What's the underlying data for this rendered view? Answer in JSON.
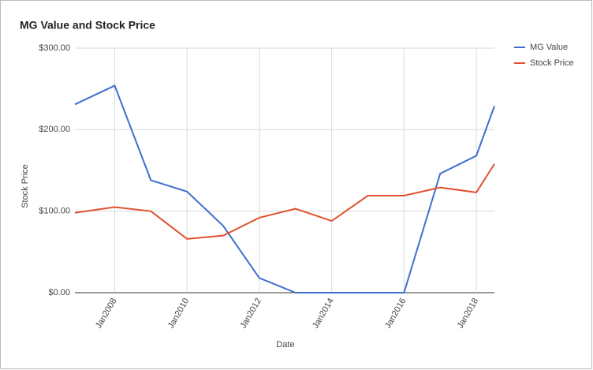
{
  "chart_data": {
    "type": "line",
    "title": "MG Value and Stock Price",
    "x_label": "Date",
    "y_label": "Stock Price",
    "x": [
      2006.9,
      2008,
      2009,
      2010,
      2011,
      2012,
      2013,
      2014,
      2015,
      2016,
      2017,
      2018,
      2018.5
    ],
    "series": [
      {
        "name": "MG Value",
        "color": "#3f6fcc",
        "values": [
          231,
          254,
          138,
          124,
          82,
          18,
          0,
          0,
          0,
          0,
          146,
          168,
          229
        ]
      },
      {
        "name": "Stock Price",
        "color": "#e0522f",
        "values": [
          98,
          105,
          100,
          66,
          70,
          92,
          103,
          88,
          119,
          119,
          129,
          123,
          158
        ]
      }
    ],
    "xlim": [
      2006.9,
      2018.5
    ],
    "xticks": [
      {
        "value": 2008,
        "label": "Jan2008"
      },
      {
        "value": 2010,
        "label": "Jan2010"
      },
      {
        "value": 2012,
        "label": "Jan2012"
      },
      {
        "value": 2014,
        "label": "Jan2014"
      },
      {
        "value": 2016,
        "label": "Jan2016"
      },
      {
        "value": 2018,
        "label": "Jan2018"
      }
    ],
    "ylim": [
      0,
      300
    ],
    "yticks": [
      {
        "value": 0,
        "label": "$0.00"
      },
      {
        "value": 100,
        "label": "$100.00"
      },
      {
        "value": 200,
        "label": "$200.00"
      },
      {
        "value": 300,
        "label": "$300.00"
      }
    ],
    "grid": true,
    "legend": "right"
  }
}
